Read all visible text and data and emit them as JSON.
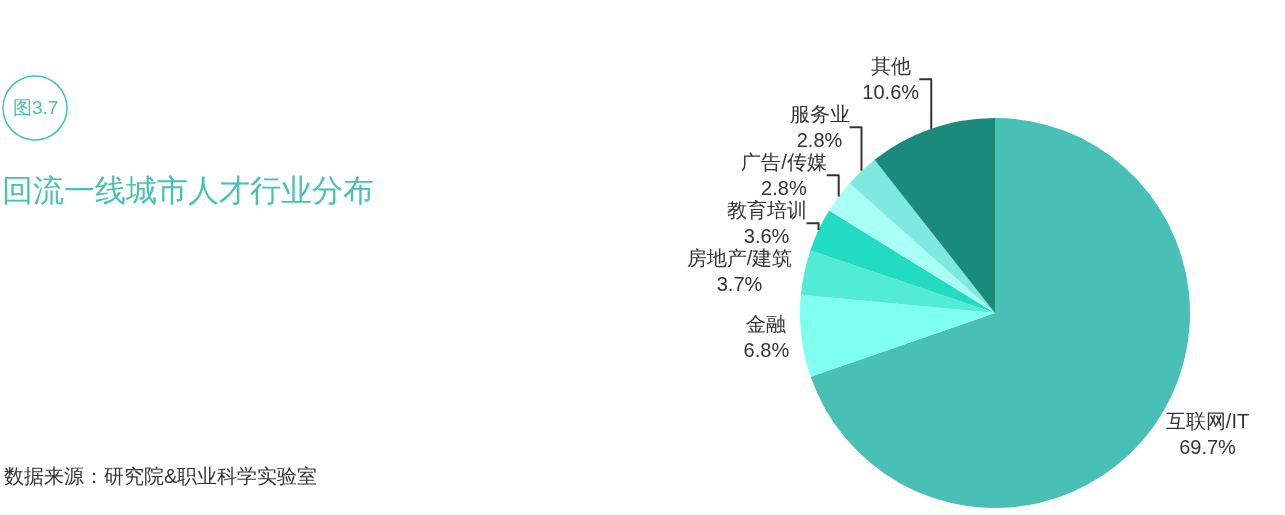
{
  "chart_data": {
    "type": "pie",
    "title": "回流一线城市人才行业分布",
    "categories": [
      "互联网/IT",
      "金融",
      "房地产/建筑",
      "教育培训",
      "广告/传媒",
      "服务业",
      "其他"
    ],
    "values": [
      69.7,
      6.8,
      3.7,
      3.6,
      2.8,
      2.8,
      10.6
    ],
    "value_labels": [
      "69.7%",
      "6.8%",
      "3.7%",
      "3.6%",
      "2.8%",
      "2.8%",
      "10.6%"
    ],
    "colors": [
      "#48c0b6",
      "#7ffff0",
      "#52ecd6",
      "#22dbc3",
      "#aafff4",
      "#7ee9df",
      "#1a8a7d"
    ],
    "annotations": [
      "图3.7",
      "数据来源：研究院&职业科学实验室"
    ]
  }
}
